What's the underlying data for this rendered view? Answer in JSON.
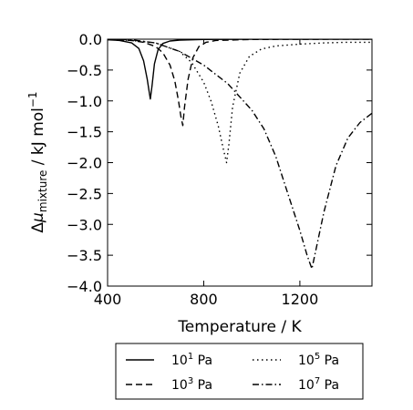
{
  "chart_data": {
    "type": "line",
    "title": "",
    "xlabel": "Temperature / K",
    "ylabel": "Δμ_mixture / kJ mol⁻¹",
    "ylabel_parts": {
      "pre": "Δ",
      "mu": "μ",
      "sub": "mixture",
      "post": " / kJ mol",
      "sup": "−1"
    },
    "xlim": [
      400,
      1500
    ],
    "ylim": [
      -4.0,
      0.0
    ],
    "x_ticks": [
      400,
      800,
      1200
    ],
    "x_tick_labels": [
      "400",
      "800",
      "1200"
    ],
    "y_ticks": [
      0.0,
      -0.5,
      -1.0,
      -1.5,
      -2.0,
      -2.5,
      -3.0,
      -3.5,
      -4.0
    ],
    "y_tick_labels": [
      "0.0",
      "−0.5",
      "−1.0",
      "−1.5",
      "−2.0",
      "−2.5",
      "−3.0",
      "−3.5",
      "−4.0"
    ],
    "grid": false,
    "legend_position": "below",
    "series": [
      {
        "name": "10¹ Pa",
        "label_base": "10",
        "label_exp": "1",
        "label_unit": " Pa",
        "style": "solid",
        "x": [
          400,
          450,
          500,
          530,
          550,
          565,
          573,
          578,
          585,
          595,
          610,
          630,
          660,
          700,
          800,
          1000,
          1500
        ],
        "y": [
          -0.01,
          -0.02,
          -0.06,
          -0.15,
          -0.35,
          -0.65,
          -0.85,
          -0.97,
          -0.75,
          -0.4,
          -0.17,
          -0.07,
          -0.03,
          -0.015,
          -0.005,
          0.0,
          0.0
        ]
      },
      {
        "name": "10³ Pa",
        "label_base": "10",
        "label_exp": "3",
        "label_unit": " Pa",
        "style": "dashed",
        "x": [
          400,
          500,
          550,
          600,
          630,
          660,
          680,
          695,
          705,
          713,
          720,
          735,
          755,
          780,
          810,
          850,
          1000,
          1500
        ],
        "y": [
          0.0,
          -0.02,
          -0.05,
          -0.12,
          -0.22,
          -0.42,
          -0.68,
          -1.0,
          -1.25,
          -1.4,
          -1.1,
          -0.65,
          -0.3,
          -0.12,
          -0.05,
          -0.02,
          -0.005,
          0.0
        ]
      },
      {
        "name": "10⁵ Pa",
        "label_base": "10",
        "label_exp": "5",
        "label_unit": " Pa",
        "style": "dotted",
        "x": [
          400,
          500,
          600,
          700,
          750,
          800,
          830,
          860,
          880,
          895,
          905,
          920,
          950,
          990,
          1040,
          1100,
          1200,
          1300,
          1400,
          1500
        ],
        "y": [
          0.0,
          -0.02,
          -0.06,
          -0.2,
          -0.38,
          -0.7,
          -1.0,
          -1.4,
          -1.75,
          -2.0,
          -1.7,
          -1.1,
          -0.55,
          -0.28,
          -0.16,
          -0.11,
          -0.08,
          -0.06,
          -0.05,
          -0.05
        ]
      },
      {
        "name": "10⁷ Pa",
        "label_base": "10",
        "label_exp": "7",
        "label_unit": " Pa",
        "style": "dashdot",
        "x": [
          400,
          500,
          600,
          700,
          800,
          900,
          1000,
          1050,
          1100,
          1150,
          1200,
          1230,
          1250,
          1270,
          1300,
          1350,
          1400,
          1450,
          1500
        ],
        "y": [
          0.0,
          -0.01,
          -0.06,
          -0.2,
          -0.42,
          -0.72,
          -1.15,
          -1.45,
          -1.9,
          -2.5,
          -3.1,
          -3.5,
          -3.72,
          -3.35,
          -2.8,
          -2.05,
          -1.6,
          -1.35,
          -1.2
        ]
      }
    ]
  }
}
